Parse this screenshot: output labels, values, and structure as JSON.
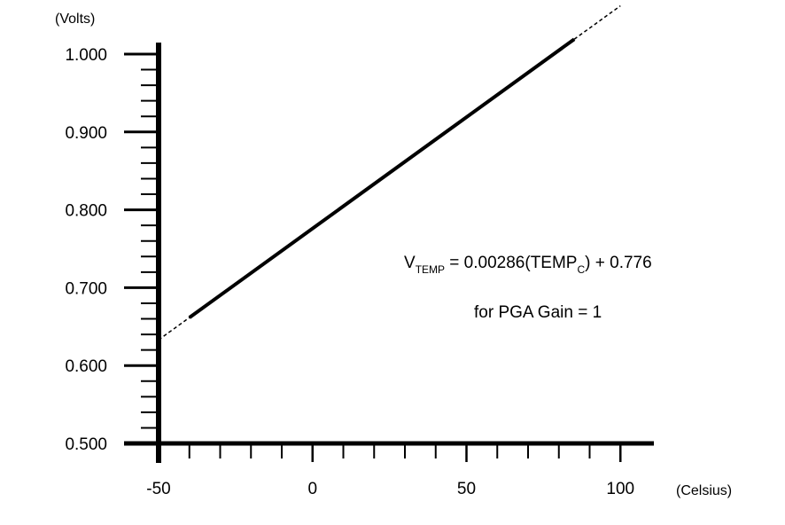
{
  "chart_data": {
    "type": "line",
    "y_unit": "(Volts)",
    "x_unit": "(Celsius)",
    "xlim": [
      -50,
      110
    ],
    "ylim": [
      0.5,
      1.0
    ],
    "x_major_ticks": [
      -50,
      0,
      50,
      100
    ],
    "x_tick_labels": [
      "-50",
      "0",
      "50",
      "100"
    ],
    "x_minor_step": 10,
    "y_major_ticks": [
      0.5,
      0.6,
      0.7,
      0.8,
      0.9,
      1.0
    ],
    "y_tick_labels": [
      "0.500",
      "0.600",
      "0.700",
      "0.800",
      "0.900",
      "1.000"
    ],
    "y_minor_step": 0.02,
    "grid": false,
    "series": [
      {
        "style": "solid",
        "slope": 0.00286,
        "intercept": 0.776,
        "x": [
          -40,
          85
        ],
        "y": [
          0.6616,
          1.0191
        ]
      },
      {
        "style": "dashed",
        "slope": 0.00286,
        "intercept": 0.776,
        "x": [
          -50,
          -40
        ],
        "y": [
          0.633,
          0.6616
        ]
      },
      {
        "style": "dashed",
        "slope": 0.00286,
        "intercept": 0.776,
        "x": [
          85,
          100
        ],
        "y": [
          1.0191,
          1.062
        ]
      }
    ],
    "annotations": {
      "equation_v": "V",
      "equation_sub_temp": "TEMP",
      "equation_mid": " = 0.00286(TEMP",
      "equation_sub_c": "C",
      "equation_end": ") + 0.776",
      "gain_note": "for PGA Gain = 1"
    }
  }
}
